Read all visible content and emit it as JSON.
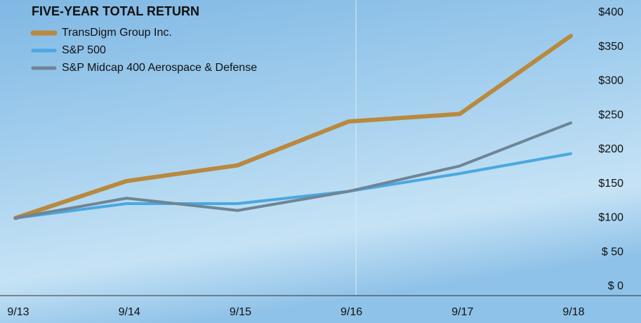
{
  "chart_data": {
    "type": "line",
    "title": "FIVE-YEAR TOTAL RETURN",
    "categories": [
      "9/13",
      "9/14",
      "9/15",
      "9/16",
      "9/17",
      "9/18"
    ],
    "series": [
      {
        "name": "TransDigm Group Inc.",
        "color": "#b8893f",
        "values": [
          100,
          154,
          177,
          241,
          252,
          366
        ]
      },
      {
        "name": "S&P 500",
        "color": "#4aa8e0",
        "values": [
          100,
          121,
          121,
          139,
          165,
          194
        ]
      },
      {
        "name": "S&P Midcap 400 Aerospace & Defense",
        "color": "#6e8596",
        "values": [
          100,
          129,
          111,
          139,
          176,
          239
        ]
      }
    ],
    "ylim": [
      0,
      400
    ],
    "yticks": [
      {
        "value": 0,
        "label": "$  0"
      },
      {
        "value": 50,
        "label": "$ 50"
      },
      {
        "value": 100,
        "label": "$100"
      },
      {
        "value": 150,
        "label": "$150"
      },
      {
        "value": 200,
        "label": "$200"
      },
      {
        "value": 250,
        "label": "$250"
      },
      {
        "value": 300,
        "label": "$300"
      },
      {
        "value": 350,
        "label": "$350"
      },
      {
        "value": 400,
        "label": "$400"
      }
    ],
    "y_axis_side": "right",
    "grid": false
  }
}
